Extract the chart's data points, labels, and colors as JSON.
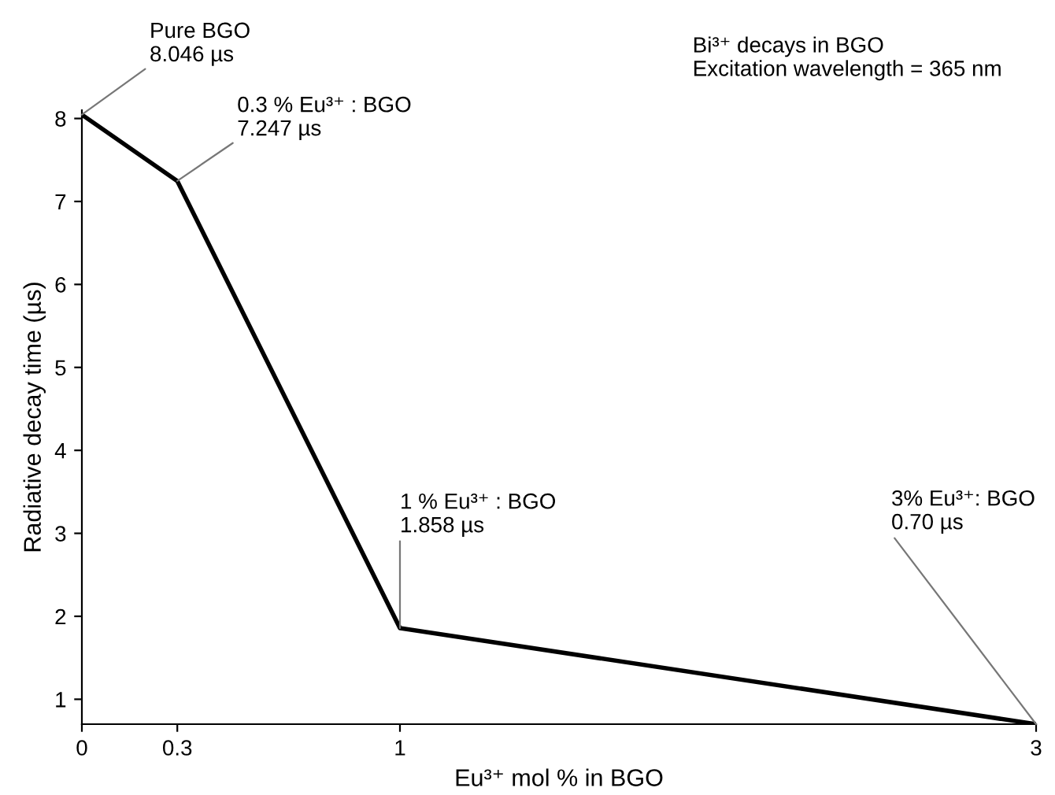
{
  "chart_data": {
    "type": "line",
    "xlabel": "Eu³⁺ mol % in BGO",
    "ylabel": "Radiative decay time (µs)",
    "x": [
      0,
      0.3,
      1,
      3
    ],
    "series": [
      {
        "color": "#000000",
        "values": [
          8.046,
          7.247,
          1.858,
          0.7
        ]
      }
    ],
    "xlim": [
      0,
      3
    ],
    "ylim": [
      0.7,
      8.1
    ],
    "xticks": [
      0,
      0.3,
      1,
      3
    ],
    "yticks": [
      1,
      2,
      3,
      4,
      5,
      6,
      7,
      8
    ],
    "grid": false,
    "legend": false,
    "marker": "none",
    "line_style": "solid",
    "annotations": [
      {
        "text": "Pure BGO\n8.046 µs",
        "x": 0,
        "y": 8.046
      },
      {
        "text": "0.3 % Eu³⁺ : BGO\n7.247 µs",
        "x": 0.3,
        "y": 7.247
      },
      {
        "text": "1 % Eu³⁺ : BGO\n1.858 µs",
        "x": 1,
        "y": 1.858
      },
      {
        "text": "3% Eu³⁺: BGO\n0.70 µs",
        "x": 3,
        "y": 0.7
      },
      "Bi³⁺ decays in BGO\nExcitation wavelength = 365 nm"
    ]
  }
}
